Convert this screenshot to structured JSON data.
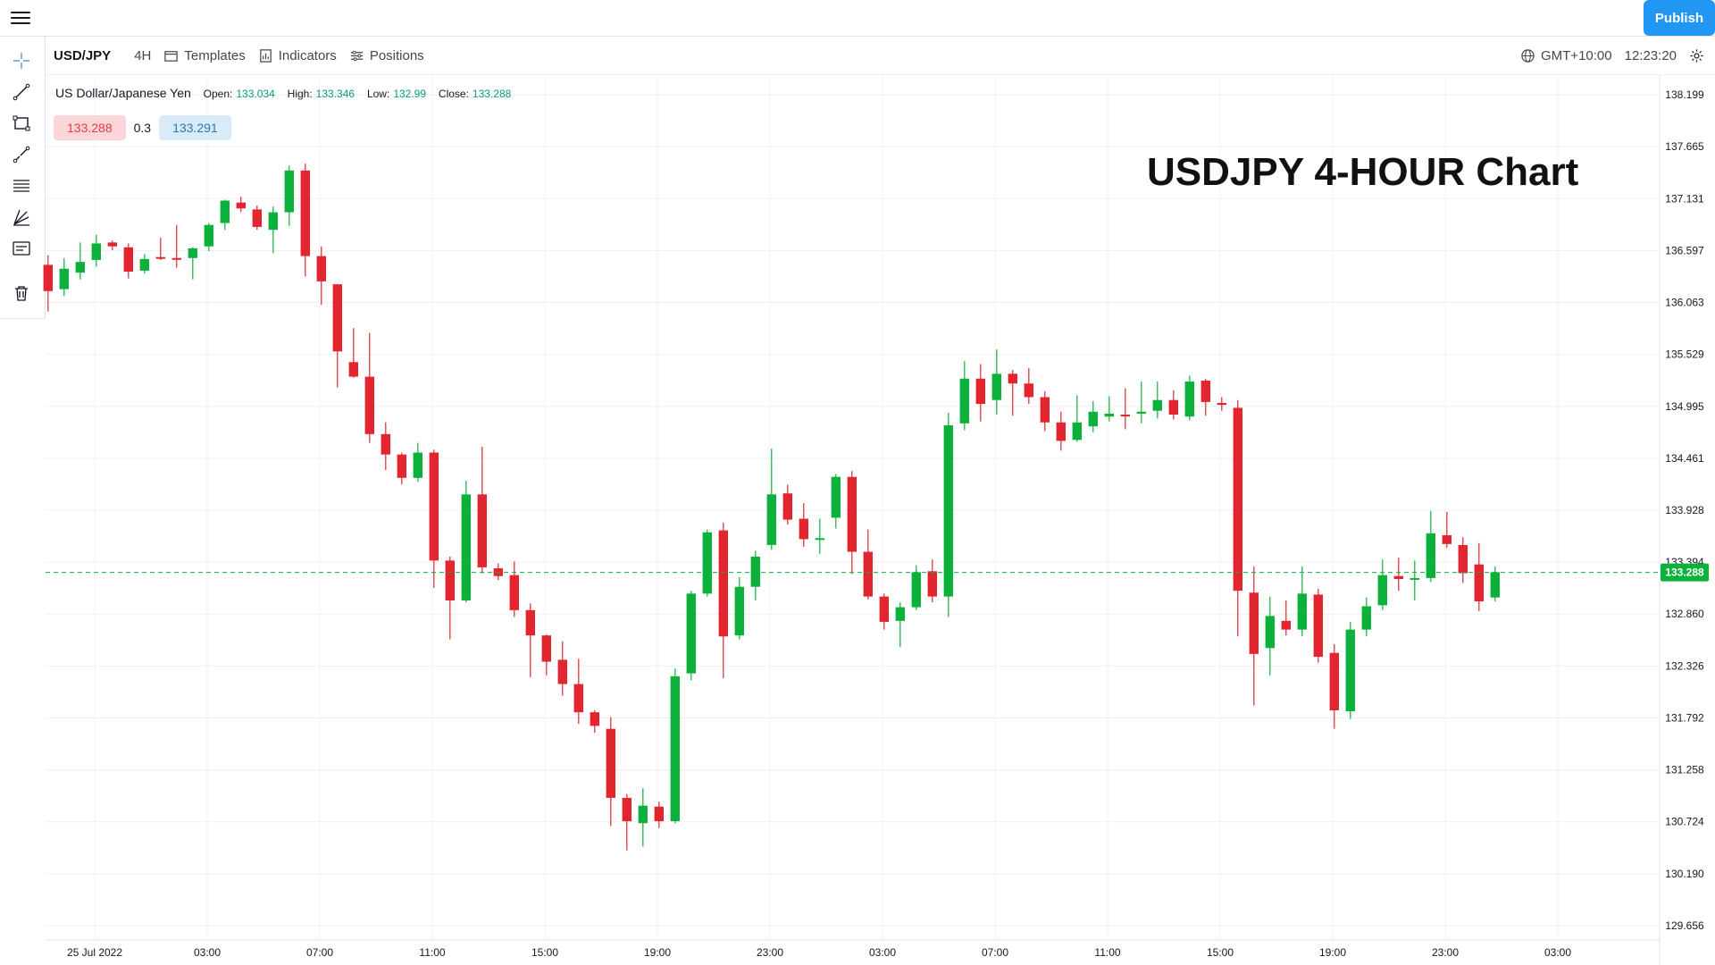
{
  "toolbar": {
    "symbol": "USD/JPY",
    "interval": "4H",
    "templates_label": "Templates",
    "indicators_label": "Indicators",
    "positions_label": "Positions",
    "timezone": "GMT+10:00",
    "time": "12:23:20",
    "publish_label": "Publish"
  },
  "left_tools": [
    "crosshair-icon",
    "trend-line-icon",
    "rectangle-icon",
    "brush-icon",
    "fib-retracement-icon",
    "pitchfork-icon",
    "text-note-icon",
    "trash-icon"
  ],
  "legend": {
    "name": "US Dollar/Japanese Yen",
    "open_label": "Open:",
    "open": "133.034",
    "high_label": "High:",
    "high": "133.346",
    "low_label": "Low:",
    "low": "132.99",
    "close_label": "Close:",
    "close": "133.288"
  },
  "quote": {
    "bid": "133.288",
    "spread": "0.3",
    "ask": "133.291"
  },
  "overlay_title": "USDJPY 4-HOUR Chart",
  "colors": {
    "up": "#0cb13b",
    "down": "#e3252f",
    "accent": "#2196f3",
    "grid": "#eef0f3"
  },
  "chart_data": {
    "type": "candlestick",
    "title": "USDJPY 4-HOUR Chart",
    "x_ticks": [
      "25 Jul 2022",
      "03:00",
      "07:00",
      "11:00",
      "15:00",
      "19:00",
      "23:00",
      "03:00",
      "07:00",
      "11:00",
      "15:00",
      "19:00",
      "23:00",
      "03:00"
    ],
    "y_ticks": [
      "138.199",
      "137.665",
      "137.131",
      "136.597",
      "136.063",
      "135.529",
      "134.995",
      "134.461",
      "133.928",
      "133.394",
      "132.860",
      "132.326",
      "131.792",
      "131.258",
      "130.724",
      "130.190",
      "129.656"
    ],
    "ylim": [
      129.656,
      138.199
    ],
    "last_price": 133.288,
    "last_price_label": "133.288",
    "candles": [
      {
        "o": 136.45,
        "h": 136.55,
        "l": 135.97,
        "c": 136.18
      },
      {
        "o": 136.2,
        "h": 136.52,
        "l": 136.13,
        "c": 136.41
      },
      {
        "o": 136.37,
        "h": 136.68,
        "l": 136.3,
        "c": 136.48
      },
      {
        "o": 136.5,
        "h": 136.76,
        "l": 136.43,
        "c": 136.67
      },
      {
        "o": 136.68,
        "h": 136.7,
        "l": 136.6,
        "c": 136.64
      },
      {
        "o": 136.63,
        "h": 136.67,
        "l": 136.31,
        "c": 136.38
      },
      {
        "o": 136.39,
        "h": 136.56,
        "l": 136.36,
        "c": 136.51
      },
      {
        "o": 136.53,
        "h": 136.73,
        "l": 136.5,
        "c": 136.52
      },
      {
        "o": 136.52,
        "h": 136.86,
        "l": 136.42,
        "c": 136.51
      },
      {
        "o": 136.52,
        "h": 136.63,
        "l": 136.3,
        "c": 136.62
      },
      {
        "o": 136.64,
        "h": 136.88,
        "l": 136.59,
        "c": 136.86
      },
      {
        "o": 136.88,
        "h": 137.12,
        "l": 136.81,
        "c": 137.11
      },
      {
        "o": 137.09,
        "h": 137.15,
        "l": 136.99,
        "c": 137.03
      },
      {
        "o": 137.02,
        "h": 137.06,
        "l": 136.81,
        "c": 136.84
      },
      {
        "o": 136.81,
        "h": 137.05,
        "l": 136.57,
        "c": 136.99
      },
      {
        "o": 136.99,
        "h": 137.47,
        "l": 136.85,
        "c": 137.42
      },
      {
        "o": 137.42,
        "h": 137.49,
        "l": 136.33,
        "c": 136.54
      },
      {
        "o": 136.54,
        "h": 136.64,
        "l": 136.04,
        "c": 136.28
      },
      {
        "o": 136.25,
        "h": 136.25,
        "l": 135.19,
        "c": 135.56
      },
      {
        "o": 135.45,
        "h": 135.8,
        "l": 135.29,
        "c": 135.3
      },
      {
        "o": 135.3,
        "h": 135.75,
        "l": 134.62,
        "c": 134.71
      },
      {
        "o": 134.71,
        "h": 134.83,
        "l": 134.34,
        "c": 134.5
      },
      {
        "o": 134.5,
        "h": 134.52,
        "l": 134.19,
        "c": 134.26
      },
      {
        "o": 134.26,
        "h": 134.62,
        "l": 134.22,
        "c": 134.52
      },
      {
        "o": 134.52,
        "h": 134.55,
        "l": 133.13,
        "c": 133.41
      },
      {
        "o": 133.41,
        "h": 133.45,
        "l": 132.6,
        "c": 133.0
      },
      {
        "o": 133.0,
        "h": 134.23,
        "l": 132.98,
        "c": 134.09
      },
      {
        "o": 134.09,
        "h": 134.58,
        "l": 133.28,
        "c": 133.34
      },
      {
        "o": 133.33,
        "h": 133.38,
        "l": 133.21,
        "c": 133.25
      },
      {
        "o": 133.26,
        "h": 133.4,
        "l": 132.83,
        "c": 132.9
      },
      {
        "o": 132.9,
        "h": 132.97,
        "l": 132.21,
        "c": 132.64
      },
      {
        "o": 132.64,
        "h": 132.65,
        "l": 132.23,
        "c": 132.37
      },
      {
        "o": 132.39,
        "h": 132.58,
        "l": 132.02,
        "c": 132.14
      },
      {
        "o": 132.14,
        "h": 132.4,
        "l": 131.73,
        "c": 131.85
      },
      {
        "o": 131.85,
        "h": 131.87,
        "l": 131.64,
        "c": 131.71
      },
      {
        "o": 131.68,
        "h": 131.8,
        "l": 130.68,
        "c": 130.97
      },
      {
        "o": 130.97,
        "h": 131.01,
        "l": 130.43,
        "c": 130.73
      },
      {
        "o": 130.71,
        "h": 131.07,
        "l": 130.47,
        "c": 130.89
      },
      {
        "o": 130.88,
        "h": 130.93,
        "l": 130.66,
        "c": 130.73
      },
      {
        "o": 130.73,
        "h": 132.3,
        "l": 130.71,
        "c": 132.22
      },
      {
        "o": 132.25,
        "h": 133.1,
        "l": 132.18,
        "c": 133.07
      },
      {
        "o": 133.07,
        "h": 133.73,
        "l": 133.04,
        "c": 133.7
      },
      {
        "o": 133.72,
        "h": 133.8,
        "l": 132.2,
        "c": 132.63
      },
      {
        "o": 132.64,
        "h": 133.24,
        "l": 132.6,
        "c": 133.14
      },
      {
        "o": 133.14,
        "h": 133.51,
        "l": 133.0,
        "c": 133.45
      },
      {
        "o": 133.57,
        "h": 134.56,
        "l": 133.52,
        "c": 134.09
      },
      {
        "o": 134.1,
        "h": 134.19,
        "l": 133.78,
        "c": 133.83
      },
      {
        "o": 133.84,
        "h": 134.0,
        "l": 133.55,
        "c": 133.63
      },
      {
        "o": 133.63,
        "h": 133.84,
        "l": 133.48,
        "c": 133.64
      },
      {
        "o": 133.85,
        "h": 134.3,
        "l": 133.74,
        "c": 134.27
      },
      {
        "o": 134.27,
        "h": 134.33,
        "l": 133.27,
        "c": 133.5
      },
      {
        "o": 133.5,
        "h": 133.73,
        "l": 133.01,
        "c": 133.04
      },
      {
        "o": 133.04,
        "h": 133.07,
        "l": 132.7,
        "c": 132.78
      },
      {
        "o": 132.79,
        "h": 132.98,
        "l": 132.52,
        "c": 132.93
      },
      {
        "o": 132.93,
        "h": 133.36,
        "l": 132.9,
        "c": 133.29
      },
      {
        "o": 133.3,
        "h": 133.42,
        "l": 132.98,
        "c": 133.04
      },
      {
        "o": 133.04,
        "h": 134.93,
        "l": 132.83,
        "c": 134.8
      },
      {
        "o": 134.82,
        "h": 135.46,
        "l": 134.75,
        "c": 135.28
      },
      {
        "o": 135.28,
        "h": 135.43,
        "l": 134.84,
        "c": 135.02
      },
      {
        "o": 135.06,
        "h": 135.58,
        "l": 134.91,
        "c": 135.33
      },
      {
        "o": 135.33,
        "h": 135.37,
        "l": 134.9,
        "c": 135.23
      },
      {
        "o": 135.23,
        "h": 135.39,
        "l": 135.02,
        "c": 135.09
      },
      {
        "o": 135.09,
        "h": 135.15,
        "l": 134.74,
        "c": 134.83
      },
      {
        "o": 134.83,
        "h": 134.94,
        "l": 134.54,
        "c": 134.64
      },
      {
        "o": 134.65,
        "h": 135.11,
        "l": 134.63,
        "c": 134.83
      },
      {
        "o": 134.79,
        "h": 135.05,
        "l": 134.73,
        "c": 134.94
      },
      {
        "o": 134.89,
        "h": 135.1,
        "l": 134.84,
        "c": 134.92
      },
      {
        "o": 134.91,
        "h": 135.18,
        "l": 134.76,
        "c": 134.9
      },
      {
        "o": 134.92,
        "h": 135.25,
        "l": 134.82,
        "c": 134.94
      },
      {
        "o": 134.95,
        "h": 135.25,
        "l": 134.87,
        "c": 135.06
      },
      {
        "o": 135.06,
        "h": 135.16,
        "l": 134.86,
        "c": 134.91
      },
      {
        "o": 134.89,
        "h": 135.31,
        "l": 134.85,
        "c": 135.25
      },
      {
        "o": 135.26,
        "h": 135.28,
        "l": 134.9,
        "c": 135.04
      },
      {
        "o": 135.03,
        "h": 135.09,
        "l": 134.95,
        "c": 135.01
      },
      {
        "o": 134.98,
        "h": 135.06,
        "l": 132.63,
        "c": 133.1
      },
      {
        "o": 133.08,
        "h": 133.35,
        "l": 131.92,
        "c": 132.45
      },
      {
        "o": 132.51,
        "h": 133.04,
        "l": 132.23,
        "c": 132.84
      },
      {
        "o": 132.79,
        "h": 133.0,
        "l": 132.64,
        "c": 132.7
      },
      {
        "o": 132.7,
        "h": 133.35,
        "l": 132.63,
        "c": 133.07
      },
      {
        "o": 133.06,
        "h": 133.12,
        "l": 132.36,
        "c": 132.42
      },
      {
        "o": 132.46,
        "h": 132.55,
        "l": 131.68,
        "c": 131.87
      },
      {
        "o": 131.86,
        "h": 132.78,
        "l": 131.78,
        "c": 132.7
      },
      {
        "o": 132.7,
        "h": 133.03,
        "l": 132.63,
        "c": 132.94
      },
      {
        "o": 132.95,
        "h": 133.42,
        "l": 132.9,
        "c": 133.26
      },
      {
        "o": 133.25,
        "h": 133.44,
        "l": 133.1,
        "c": 133.22
      },
      {
        "o": 133.22,
        "h": 133.41,
        "l": 133.0,
        "c": 133.23
      },
      {
        "o": 133.23,
        "h": 133.92,
        "l": 133.19,
        "c": 133.69
      },
      {
        "o": 133.67,
        "h": 133.91,
        "l": 133.54,
        "c": 133.58
      },
      {
        "o": 133.57,
        "h": 133.65,
        "l": 133.18,
        "c": 133.28
      },
      {
        "o": 133.37,
        "h": 133.59,
        "l": 132.89,
        "c": 132.99
      },
      {
        "o": 133.03,
        "h": 133.35,
        "l": 132.99,
        "c": 133.29
      }
    ]
  }
}
